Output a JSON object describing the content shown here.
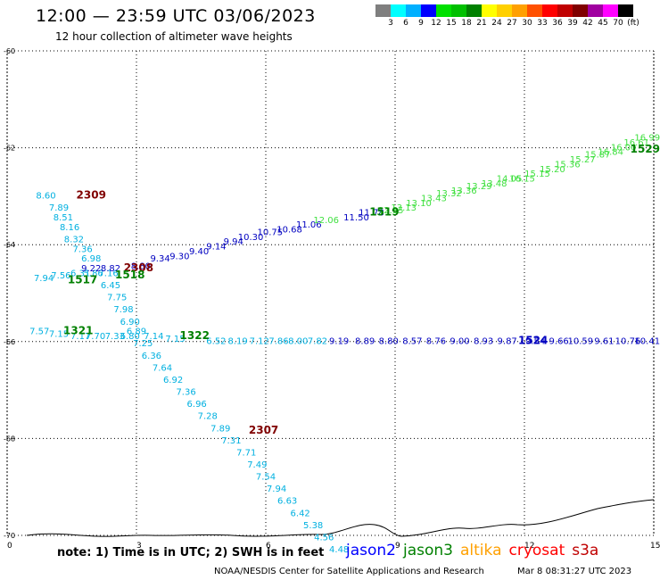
{
  "header": {
    "title": "12:00 — 23:59 UTC 03/06/2023",
    "subtitle": "12 hour collection of altimeter wave heights"
  },
  "legend": {
    "colors": [
      "#7f7f7f",
      "#00ffff",
      "#00b0ff",
      "#0000ff",
      "#00e000",
      "#00c000",
      "#008000",
      "#ffff00",
      "#ffd000",
      "#ffa000",
      "#ff5000",
      "#ff0000",
      "#c00000",
      "#800000",
      "#a000a0",
      "#ff00ff",
      "#000000"
    ],
    "labels": [
      "3",
      "6",
      "9",
      "12",
      "15",
      "18",
      "21",
      "24",
      "27",
      "30",
      "33",
      "36",
      "39",
      "42",
      "45",
      "70",
      "(ft)"
    ]
  },
  "axes": {
    "x_ticks": [
      "0",
      "3",
      "6",
      "9",
      "12",
      "15"
    ],
    "y_ticks": [
      "-60",
      "-62",
      "-64",
      "-66",
      "-68",
      "-70"
    ]
  },
  "colors": {
    "cyan": "#00b0e0",
    "blue": "#0000c0",
    "green": "#008000",
    "lightgreen": "#40e040",
    "darkred": "#800000",
    "gridline": "#000000",
    "coast": "#000000"
  },
  "track_labels": [
    {
      "text": "2309",
      "x": 1.95,
      "y": -63.05,
      "color": "darkred",
      "bold": true
    },
    {
      "text": "2308",
      "x": 3.05,
      "y": -64.55,
      "color": "darkred",
      "bold": true
    },
    {
      "text": "2307",
      "x": 5.95,
      "y": -67.9,
      "color": "darkred",
      "bold": true
    },
    {
      "text": "1517",
      "x": 1.75,
      "y": -64.8,
      "color": "green",
      "bold": true
    },
    {
      "text": "1518",
      "x": 2.85,
      "y": -64.7,
      "color": "green",
      "bold": true
    },
    {
      "text": "1321",
      "x": 1.65,
      "y": -65.85,
      "color": "green",
      "bold": true
    },
    {
      "text": "1322",
      "x": 4.35,
      "y": -65.95,
      "color": "green",
      "bold": true
    },
    {
      "text": "1519",
      "x": 8.75,
      "y": -63.4,
      "color": "green",
      "bold": true
    },
    {
      "text": "1524",
      "x": 12.2,
      "y": -66.05,
      "color": "blue",
      "bold": true
    },
    {
      "text": "1529",
      "x": 14.8,
      "y": -62.1,
      "color": "green",
      "bold": true
    }
  ],
  "measurements": {
    "diag_cyan": [
      {
        "v": "8.60",
        "x": 0.9,
        "y": -63.05
      },
      {
        "v": "7.89",
        "x": 1.2,
        "y": -63.3
      },
      {
        "v": "8.51",
        "x": 1.3,
        "y": -63.5
      },
      {
        "v": "8.16",
        "x": 1.45,
        "y": -63.7
      },
      {
        "v": "8.32",
        "x": 1.55,
        "y": -63.95
      },
      {
        "v": "7.36",
        "x": 1.75,
        "y": -64.15
      },
      {
        "v": "6.98",
        "x": 1.95,
        "y": -64.35
      }
    ],
    "cross_cyan": [
      {
        "v": "7.94",
        "x": 0.85,
        "y": -64.75
      },
      {
        "v": "7.56",
        "x": 1.25,
        "y": -64.7
      },
      {
        "v": "6.31",
        "x": 1.7,
        "y": -64.65
      },
      {
        "v": "5.86",
        "x": 2.0,
        "y": -64.65
      },
      {
        "v": "7.16",
        "x": 2.35,
        "y": -64.65
      },
      {
        "v": "6.45",
        "x": 2.4,
        "y": -64.9
      },
      {
        "v": "7.75",
        "x": 2.55,
        "y": -65.15
      },
      {
        "v": "7.98",
        "x": 2.7,
        "y": -65.4
      },
      {
        "v": "6.90",
        "x": 2.85,
        "y": -65.65
      },
      {
        "v": "6.89",
        "x": 3.0,
        "y": -65.85
      }
    ],
    "low_cyan": [
      {
        "v": "7.57",
        "x": 0.75,
        "y": -65.85
      },
      {
        "v": "7.15",
        "x": 1.2,
        "y": -65.9
      },
      {
        "v": "7.17",
        "x": 1.7,
        "y": -65.95
      },
      {
        "v": "7.70",
        "x": 2.05,
        "y": -65.95
      },
      {
        "v": "7.33",
        "x": 2.5,
        "y": -65.95
      },
      {
        "v": "6.80",
        "x": 2.85,
        "y": -65.95
      },
      {
        "v": "7.14",
        "x": 3.4,
        "y": -65.95
      },
      {
        "v": "7.15",
        "x": 3.9,
        "y": -66.0
      },
      {
        "v": "6.52",
        "x": 4.85,
        "y": -66.05
      },
      {
        "v": "8.19",
        "x": 5.35,
        "y": -66.05
      },
      {
        "v": "7.12",
        "x": 5.85,
        "y": -66.05
      },
      {
        "v": "7.86",
        "x": 6.3,
        "y": -66.05
      },
      {
        "v": "8.00",
        "x": 6.75,
        "y": -66.05
      },
      {
        "v": "7.82",
        "x": 7.2,
        "y": -66.05
      }
    ],
    "low_blue": [
      {
        "v": "9.19",
        "x": 7.7,
        "y": -66.05
      },
      {
        "v": "8.89",
        "x": 8.3,
        "y": -66.05
      },
      {
        "v": "8.80",
        "x": 8.85,
        "y": -66.05
      },
      {
        "v": "8.57",
        "x": 9.4,
        "y": -66.05
      },
      {
        "v": "8.76",
        "x": 9.95,
        "y": -66.05
      },
      {
        "v": "9.00",
        "x": 10.5,
        "y": -66.05
      },
      {
        "v": "8.93",
        "x": 11.05,
        "y": -66.05
      },
      {
        "v": "9.87",
        "x": 11.6,
        "y": -66.05
      },
      {
        "v": "9.54",
        "x": 12.25,
        "y": -66.05
      },
      {
        "v": "9.66",
        "x": 12.8,
        "y": -66.05
      },
      {
        "v": "10.59",
        "x": 13.3,
        "y": -66.05
      },
      {
        "v": "9.61",
        "x": 13.85,
        "y": -66.05
      },
      {
        "v": "10.76",
        "x": 14.4,
        "y": -66.05
      },
      {
        "v": "10.41",
        "x": 14.85,
        "y": -66.05
      }
    ],
    "steep_cyan": [
      {
        "v": "7.25",
        "x": 3.15,
        "y": -66.1
      },
      {
        "v": "6.36",
        "x": 3.35,
        "y": -66.35
      },
      {
        "v": "7.64",
        "x": 3.6,
        "y": -66.6
      },
      {
        "v": "6.92",
        "x": 3.85,
        "y": -66.85
      },
      {
        "v": "7.36",
        "x": 4.15,
        "y": -67.1
      },
      {
        "v": "6.96",
        "x": 4.4,
        "y": -67.35
      },
      {
        "v": "7.28",
        "x": 4.65,
        "y": -67.6
      },
      {
        "v": "7.89",
        "x": 4.95,
        "y": -67.85
      },
      {
        "v": "7.31",
        "x": 5.2,
        "y": -68.1
      },
      {
        "v": "7.71",
        "x": 5.55,
        "y": -68.35
      },
      {
        "v": "7.49",
        "x": 5.8,
        "y": -68.6
      },
      {
        "v": "7.54",
        "x": 6.0,
        "y": -68.85
      },
      {
        "v": "7.94",
        "x": 6.25,
        "y": -69.1
      },
      {
        "v": "6.63",
        "x": 6.5,
        "y": -69.35
      },
      {
        "v": "6.42",
        "x": 6.8,
        "y": -69.6
      },
      {
        "v": "5.38",
        "x": 7.1,
        "y": -69.85
      },
      {
        "v": "4.56",
        "x": 7.35,
        "y": -70.1
      },
      {
        "v": "4.48",
        "x": 7.7,
        "y": -70.35
      }
    ],
    "rise_dark": [
      {
        "v": "9.22",
        "x": 1.95,
        "y": -64.55
      },
      {
        "v": "8.82",
        "x": 2.4,
        "y": -64.55
      },
      {
        "v": "8.80",
        "x": 3.1,
        "y": -64.5
      }
    ],
    "rise_blue": [
      {
        "v": "9.34",
        "x": 3.55,
        "y": -64.35
      },
      {
        "v": "9.30",
        "x": 4.0,
        "y": -64.3
      },
      {
        "v": "9.40",
        "x": 4.45,
        "y": -64.2
      },
      {
        "v": "9.14",
        "x": 4.85,
        "y": -64.1
      },
      {
        "v": "9.94",
        "x": 5.25,
        "y": -64.0
      },
      {
        "v": "10.30",
        "x": 5.65,
        "y": -63.9
      },
      {
        "v": "10.75",
        "x": 6.1,
        "y": -63.8
      },
      {
        "v": "10.68",
        "x": 6.55,
        "y": -63.75
      },
      {
        "v": "11.06",
        "x": 7.0,
        "y": -63.65
      },
      {
        "v": "11.50",
        "x": 8.1,
        "y": -63.5
      },
      {
        "v": "11.78",
        "x": 8.45,
        "y": -63.4
      }
    ],
    "rise_green": [
      {
        "v": "12.06",
        "x": 7.4,
        "y": -63.55
      },
      {
        "v": "12.35",
        "x": 8.9,
        "y": -63.35
      },
      {
        "v": "13.13",
        "x": 9.2,
        "y": -63.3
      },
      {
        "v": "13.10",
        "x": 9.55,
        "y": -63.2
      },
      {
        "v": "13.43",
        "x": 9.9,
        "y": -63.1
      },
      {
        "v": "13.32",
        "x": 10.25,
        "y": -63.0
      },
      {
        "v": "13.36",
        "x": 10.6,
        "y": -62.95
      },
      {
        "v": "13.29",
        "x": 10.95,
        "y": -62.85
      },
      {
        "v": "13.48",
        "x": 11.3,
        "y": -62.8
      },
      {
        "v": "14.05",
        "x": 11.65,
        "y": -62.7
      }
    ],
    "rise_dkgreen": [
      {
        "v": "16.15",
        "x": 11.95,
        "y": -62.7
      },
      {
        "v": "15.15",
        "x": 12.3,
        "y": -62.6
      },
      {
        "v": "15.20",
        "x": 12.65,
        "y": -62.5
      },
      {
        "v": "15.36",
        "x": 13.0,
        "y": -62.4
      },
      {
        "v": "15.27",
        "x": 13.35,
        "y": -62.3
      },
      {
        "v": "15.87",
        "x": 13.7,
        "y": -62.2
      },
      {
        "v": "16.84",
        "x": 14.0,
        "y": -62.15
      },
      {
        "v": "16.00",
        "x": 14.3,
        "y": -62.05
      },
      {
        "v": "16.61",
        "x": 14.6,
        "y": -61.95
      },
      {
        "v": "16.99",
        "x": 14.85,
        "y": -61.85
      }
    ]
  },
  "footer": {
    "note": "note: 1) Time is in UTC; 2) SWH is in feet",
    "satellites": [
      {
        "name": "jason2",
        "color": "#0000ff"
      },
      {
        "name": "jason3",
        "color": "#008000"
      },
      {
        "name": "altika",
        "color": "#ffa000"
      },
      {
        "name": "cryosat",
        "color": "#ff0000"
      },
      {
        "name": "s3a",
        "color": "#c00000"
      }
    ],
    "credit": "NOAA/NESDIS Center for Satellite Applications and Research",
    "date": "Mar  8 08:31:27 UTC 2023"
  }
}
